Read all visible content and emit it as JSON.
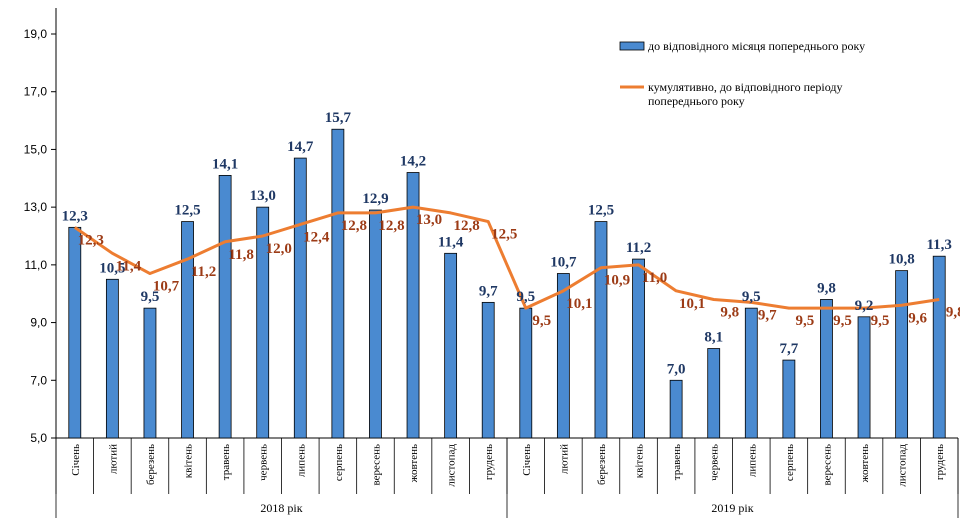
{
  "chart_data": {
    "type": "bar",
    "categories": [
      "Січень",
      "лютий",
      "березень",
      "квітень",
      "травень",
      "червень",
      "липень",
      "серпень",
      "вересень",
      "жовтень",
      "листопад",
      "грудень",
      "Січень",
      "лютий",
      "березень",
      "квітень",
      "травень",
      "червень",
      "липень",
      "серпень",
      "вересень",
      "жовтень",
      "листопад",
      "грудень"
    ],
    "groups": [
      {
        "label": "2018 рік",
        "count": 12
      },
      {
        "label": "2019 рік",
        "count": 12
      }
    ],
    "ylim": [
      5.0,
      19.0
    ],
    "yticks": [
      "5,0",
      "7,0",
      "9,0",
      "11,0",
      "13,0",
      "15,0",
      "17,0",
      "19,0"
    ],
    "series": [
      {
        "name": "до відповідного  місяця попереднього року",
        "type": "bar",
        "color": "#4a8ad0",
        "values": [
          12.3,
          10.5,
          9.5,
          12.5,
          14.1,
          13.0,
          14.7,
          15.7,
          12.9,
          14.2,
          11.4,
          9.7,
          9.5,
          10.7,
          12.5,
          11.2,
          7.0,
          8.1,
          9.5,
          7.7,
          9.8,
          9.2,
          10.8,
          11.3
        ],
        "labels": [
          "12,3",
          "10,5",
          "9,5",
          "12,5",
          "14,1",
          "13,0",
          "14,7",
          "15,7",
          "12,9",
          "14,2",
          "11,4",
          "9,7",
          "9,5",
          "10,7",
          "12,5",
          "11,2",
          "7,0",
          "8,1",
          "9,5",
          "7,7",
          "9,8",
          "9,2",
          "10,8",
          "11,3"
        ]
      },
      {
        "name": "кумулятивно, до відповідного  періоду попереднього року",
        "name_lines": [
          "кумулятивно, до відповідного  періоду",
          "попереднього року"
        ],
        "type": "line",
        "color": "#ed7d31",
        "values": [
          12.3,
          11.4,
          10.7,
          11.2,
          11.8,
          12.0,
          12.4,
          12.8,
          12.8,
          13.0,
          12.8,
          12.5,
          9.5,
          10.1,
          10.9,
          11.0,
          10.1,
          9.8,
          9.7,
          9.5,
          9.5,
          9.5,
          9.6,
          9.8
        ],
        "labels": [
          "12,3",
          "11,4",
          "10,7",
          "11,2",
          "11,8",
          "12,0",
          "12,4",
          "12,8",
          "12,8",
          "13,0",
          "12,8",
          "12,5",
          "9,5",
          "10,1",
          "10,9",
          "11,0",
          "10,1",
          "9,8",
          "9,7",
          "9,5",
          "9,5",
          "9,5",
          "9,6",
          "9,8"
        ]
      }
    ],
    "grid": false,
    "legend": "top-right"
  }
}
